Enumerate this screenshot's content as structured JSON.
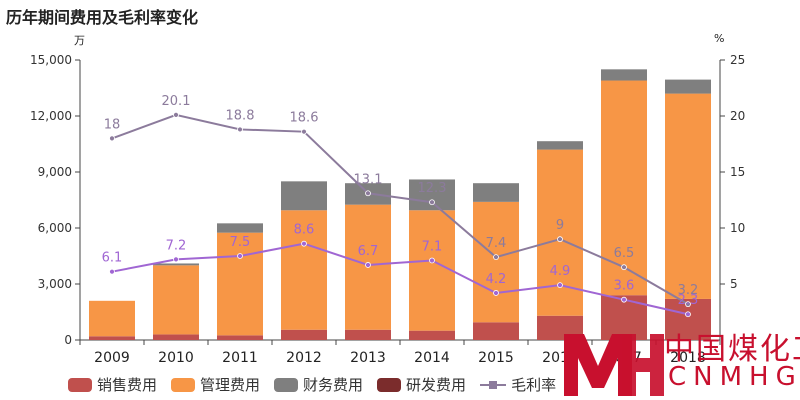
{
  "title": "历年期间费用及毛利率变化",
  "unit_left": "万",
  "unit_right": "%",
  "logo": {
    "cn": "中国煤化工",
    "en": "CNMHG",
    "letters": "MH"
  },
  "colors": {
    "sales": "#c0504d",
    "management": "#f79646",
    "finance": "#7f7f7f",
    "rd": "#7b2c2c",
    "gross_margin": "#8c7b9c",
    "net_margin": "#a066d3",
    "logo": "#c8102e"
  },
  "chart_data": {
    "type": "bar",
    "stacked": true,
    "categories": [
      "2009",
      "2010",
      "2011",
      "2012",
      "2013",
      "2014",
      "2015",
      "2016",
      "2017",
      "2018"
    ],
    "ylim": [
      0,
      15000
    ],
    "yticks": [
      "0",
      "3,000",
      "6,000",
      "9,000",
      "12,000",
      "15,000"
    ],
    "ylim_right": [
      0,
      25
    ],
    "yticks_right": [
      "5",
      "10",
      "15",
      "20",
      "25"
    ],
    "legend_position": "bottom",
    "series": [
      {
        "name": "销售费用",
        "key": "sales",
        "values": [
          200,
          300,
          250,
          550,
          550,
          500,
          950,
          1300,
          2400,
          2200
        ]
      },
      {
        "name": "管理费用",
        "key": "management",
        "values": [
          1900,
          3700,
          5500,
          6400,
          6700,
          6450,
          6450,
          8900,
          11500,
          11000
        ]
      },
      {
        "name": "财务费用",
        "key": "finance",
        "values": [
          0,
          100,
          500,
          1550,
          1150,
          1650,
          1000,
          450,
          600,
          750
        ]
      },
      {
        "name": "研发费用",
        "key": "rd",
        "values": [
          0,
          0,
          0,
          0,
          0,
          0,
          0,
          0,
          0,
          0
        ]
      }
    ],
    "lines": [
      {
        "name": "毛利率",
        "key": "gross_margin",
        "axis": "right",
        "values": [
          18,
          20.1,
          18.8,
          18.6,
          13.1,
          12.3,
          7.4,
          9,
          6.5,
          3.2
        ],
        "labels": [
          "18",
          "20.1",
          "18.8",
          "18.6",
          "13.1",
          "12.3",
          "7.4",
          "9",
          "6.5",
          "3.2"
        ]
      },
      {
        "axis": "right",
        "key": "net_margin",
        "values": [
          6.1,
          7.2,
          7.5,
          8.6,
          6.7,
          7.1,
          4.2,
          4.9,
          3.6,
          2.3
        ],
        "labels": [
          "6.1",
          "7.2",
          "7.5",
          "8.6",
          "6.7",
          "7.1",
          "4.2",
          "4.9",
          "3.6",
          "2.3"
        ]
      }
    ]
  },
  "legend": [
    "销售费用",
    "管理费用",
    "财务费用",
    "研发费用",
    "毛利率"
  ]
}
